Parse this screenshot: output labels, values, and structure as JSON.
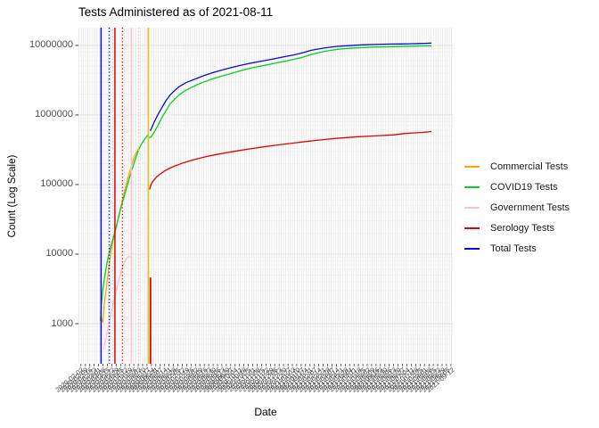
{
  "title": "Tests Administered as of 2021-08-11",
  "axes": {
    "x_title": "Date",
    "y_title": "Count (Log Scale)",
    "y_tick_labels": [
      "10000000",
      "1000000",
      "100000",
      "10000",
      "1000"
    ],
    "y_tick_values": [
      10000000,
      1000000,
      100000,
      10000,
      1000
    ],
    "x_tick_note": "dense overlapping rotated ISO date labels, unreadable in source"
  },
  "legend": {
    "position": "right",
    "entries": [
      {
        "label": "Commercial Tests",
        "color": "#FFA500"
      },
      {
        "label": "COVID19 Tests",
        "color": "#00D41E"
      },
      {
        "label": "Government Tests",
        "color": "#FFC0CB"
      },
      {
        "label": "Serology Tests",
        "color": "#E60000"
      },
      {
        "label": "Total Tests",
        "color": "#0A0ADC"
      }
    ]
  },
  "colors": {
    "grid_major": "#e3e3e3",
    "grid_minor": "#f1f1f1",
    "grid_stripe": "#ebebeb",
    "tick_text": "#4d4d4d",
    "tick_mark": "#333333",
    "gold_vline": "#EEC200"
  },
  "chart_data": {
    "type": "line",
    "title": "Tests Administered as of 2021-08-11",
    "xlabel": "Date",
    "ylabel": "Count (Log Scale)",
    "y_scale": "log10",
    "y_domain": [
      265,
      18000000
    ],
    "x_epoch": "2020-03-01",
    "x_domain_days": [
      -32,
      563
    ],
    "x_tick_first_day": -28,
    "x_tick_last_day": 560,
    "x_tick_step_days": 7,
    "grid": "log minor+major horizontal, dense daily vertical stripes",
    "legend_position": "right",
    "series": [
      {
        "name": "Commercial Tests",
        "color": "#FFA500",
        "points": [
          [
            3,
            1500
          ],
          [
            5,
            1150
          ],
          [
            7,
            1050
          ],
          [
            9,
            1900
          ],
          [
            12,
            3100
          ],
          [
            15,
            5200
          ],
          [
            18,
            8500
          ],
          [
            21,
            12500
          ],
          [
            24,
            17000
          ],
          [
            27,
            22000
          ],
          [
            30,
            29000
          ],
          [
            34,
            42000
          ],
          [
            38,
            60000
          ],
          [
            42,
            85000
          ],
          [
            46,
            120000
          ],
          [
            50,
            160000
          ],
          [
            54,
            210000
          ],
          [
            58,
            265000
          ],
          [
            61,
            300000
          ],
          [
            64,
            330000
          ]
        ]
      },
      {
        "name": "Government Tests",
        "color": "#FFC0CB",
        "points": [
          [
            8,
            430
          ],
          [
            12,
            640
          ],
          [
            16,
            950
          ],
          [
            20,
            1400
          ],
          [
            24,
            2100
          ],
          [
            28,
            3000
          ],
          [
            32,
            4200
          ],
          [
            36,
            5700
          ],
          [
            40,
            7200
          ],
          [
            44,
            8500
          ],
          [
            48,
            9300
          ],
          [
            51,
            9000
          ]
        ]
      },
      {
        "name": "COVID19 Tests",
        "color": "#00D41E",
        "points": [
          [
            3,
            1100
          ],
          [
            5,
            2100
          ],
          [
            7,
            3200
          ],
          [
            9,
            4300
          ],
          [
            11,
            5600
          ],
          [
            13,
            7200
          ],
          [
            15,
            8800
          ],
          [
            17,
            10500
          ],
          [
            19,
            12500
          ],
          [
            22,
            15500
          ],
          [
            25,
            19500
          ],
          [
            28,
            25000
          ],
          [
            31,
            32000
          ],
          [
            34,
            41000
          ],
          [
            37,
            52000
          ],
          [
            40,
            64000
          ],
          [
            43,
            80000
          ],
          [
            46,
            100000
          ],
          [
            49,
            125000
          ],
          [
            52,
            155000
          ],
          [
            55,
            185000
          ],
          [
            58,
            225000
          ],
          [
            61,
            270000
          ],
          [
            64,
            320000
          ],
          [
            67,
            365000
          ],
          [
            70,
            405000
          ],
          [
            73,
            445000
          ],
          [
            76,
            485000
          ],
          [
            78,
            510000
          ],
          [
            80,
            468000
          ],
          [
            83,
            480000
          ],
          [
            86,
            520000
          ],
          [
            90,
            600000
          ],
          [
            95,
            720000
          ],
          [
            100,
            900000
          ],
          [
            107,
            1150000
          ],
          [
            114,
            1450000
          ],
          [
            121,
            1700000
          ],
          [
            128,
            1950000
          ],
          [
            140,
            2300000
          ],
          [
            154,
            2650000
          ],
          [
            168,
            3000000
          ],
          [
            183,
            3350000
          ],
          [
            197,
            3650000
          ],
          [
            211,
            3950000
          ],
          [
            225,
            4300000
          ],
          [
            239,
            4650000
          ],
          [
            253,
            4950000
          ],
          [
            268,
            5250000
          ],
          [
            282,
            5600000
          ],
          [
            296,
            5900000
          ],
          [
            310,
            6300000
          ],
          [
            324,
            6750000
          ],
          [
            338,
            7400000
          ],
          [
            353,
            8000000
          ],
          [
            367,
            8450000
          ],
          [
            381,
            8800000
          ],
          [
            395,
            9050000
          ],
          [
            409,
            9200000
          ],
          [
            423,
            9350000
          ],
          [
            437,
            9450000
          ],
          [
            466,
            9600000
          ],
          [
            494,
            9750000
          ],
          [
            529,
            9900000
          ]
        ]
      },
      {
        "name": "Serology Tests",
        "color": "#E60000",
        "points": [
          [
            81,
            85000
          ],
          [
            83,
            98000
          ],
          [
            85,
            107000
          ],
          [
            88,
            116000
          ],
          [
            92,
            128000
          ],
          [
            97,
            140000
          ],
          [
            104,
            155000
          ],
          [
            112,
            170000
          ],
          [
            120,
            183000
          ],
          [
            130,
            198000
          ],
          [
            140,
            212000
          ],
          [
            152,
            228000
          ],
          [
            165,
            245000
          ],
          [
            180,
            262000
          ],
          [
            195,
            278000
          ],
          [
            211,
            295000
          ],
          [
            228,
            313000
          ],
          [
            245,
            330000
          ],
          [
            262,
            348000
          ],
          [
            280,
            366000
          ],
          [
            297,
            383000
          ],
          [
            315,
            400000
          ],
          [
            330,
            415000
          ],
          [
            345,
            430000
          ],
          [
            360,
            445000
          ],
          [
            378,
            460000
          ],
          [
            396,
            475000
          ],
          [
            414,
            487000
          ],
          [
            432,
            497000
          ],
          [
            450,
            507000
          ],
          [
            468,
            517000
          ],
          [
            486,
            540000
          ],
          [
            500,
            552000
          ],
          [
            515,
            562000
          ],
          [
            529,
            578000
          ]
        ]
      },
      {
        "name": "Total Tests",
        "color": "#0A0ADC",
        "points": [
          [
            82,
            590000
          ],
          [
            85,
            670000
          ],
          [
            88,
            780000
          ],
          [
            92,
            920000
          ],
          [
            96,
            1080000
          ],
          [
            100,
            1250000
          ],
          [
            107,
            1600000
          ],
          [
            114,
            1950000
          ],
          [
            121,
            2250000
          ],
          [
            128,
            2550000
          ],
          [
            140,
            2950000
          ],
          [
            154,
            3300000
          ],
          [
            168,
            3700000
          ],
          [
            183,
            4100000
          ],
          [
            197,
            4450000
          ],
          [
            211,
            4800000
          ],
          [
            225,
            5150000
          ],
          [
            239,
            5500000
          ],
          [
            253,
            5800000
          ],
          [
            268,
            6150000
          ],
          [
            282,
            6500000
          ],
          [
            296,
            6900000
          ],
          [
            310,
            7300000
          ],
          [
            324,
            7800000
          ],
          [
            338,
            8500000
          ],
          [
            353,
            9000000
          ],
          [
            367,
            9400000
          ],
          [
            381,
            9700000
          ],
          [
            395,
            9900000
          ],
          [
            409,
            10050000
          ],
          [
            423,
            10200000
          ],
          [
            437,
            10300000
          ],
          [
            451,
            10400000
          ],
          [
            466,
            10450000
          ],
          [
            480,
            10500000
          ],
          [
            494,
            10550000
          ],
          [
            510,
            10650000
          ],
          [
            520,
            10700000
          ],
          [
            529,
            10800000
          ]
        ]
      }
    ],
    "vlines": [
      {
        "day": 4,
        "color": "#0A0ADC",
        "style": "solid"
      },
      {
        "day": 17,
        "color": "#0A0ADC",
        "style": "dotted"
      },
      {
        "day": 26,
        "color": "#E60000",
        "style": "solid"
      },
      {
        "day": 38,
        "color": "#E60000",
        "style": "dotted"
      },
      {
        "day": 52,
        "color": "#FFC0CB",
        "style": "solid"
      },
      {
        "day": 64,
        "color": "#FFC0CB",
        "style": "dotted"
      },
      {
        "day": 79,
        "color": "#EEC200",
        "style": "solid"
      }
    ],
    "vsegments": [
      {
        "day": 81,
        "color": "#E60000",
        "value_from": 265,
        "value_to": 4600
      }
    ]
  }
}
